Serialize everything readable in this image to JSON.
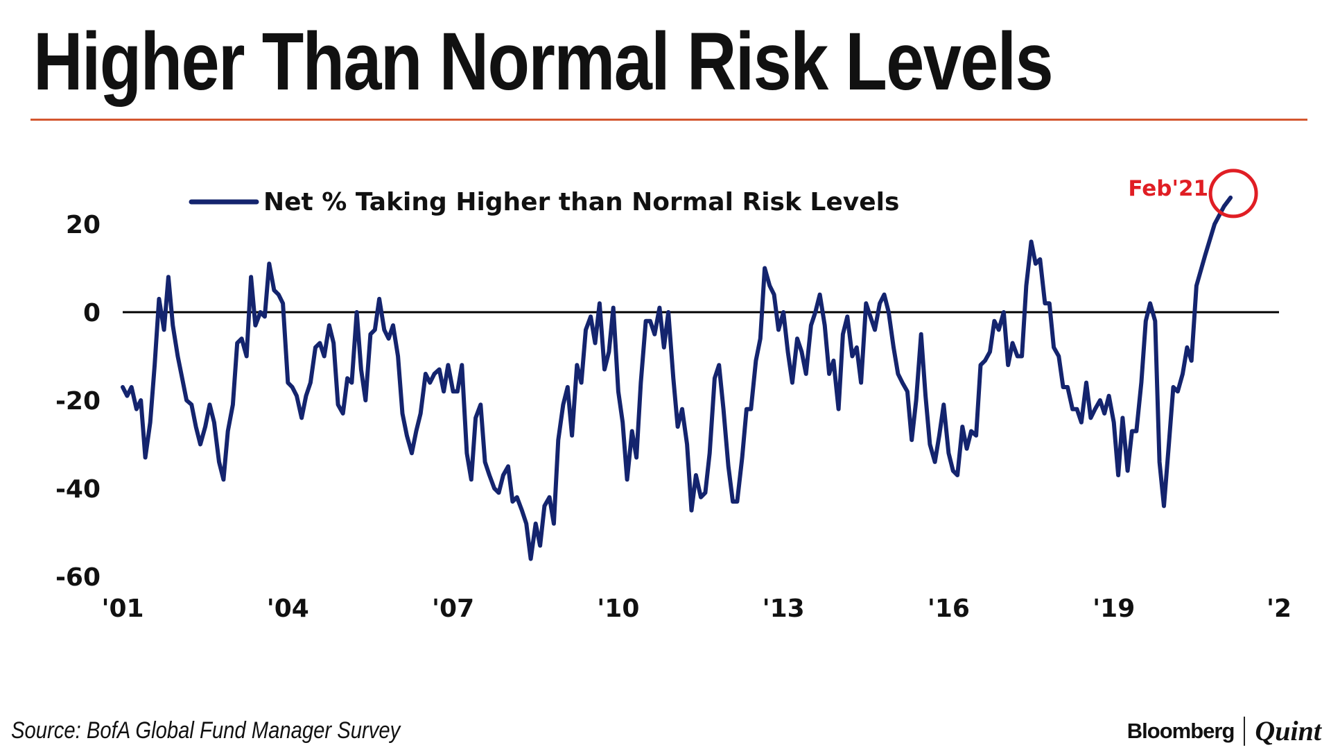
{
  "header": {
    "title": "Higher Than Normal Risk Levels"
  },
  "footer": {
    "source": "Source: BofA Global Fund Manager Survey",
    "brand_primary": "Bloomberg",
    "brand_secondary": "Quint"
  },
  "colors": {
    "line": "#14246e",
    "accent_rule": "#d4572f",
    "highlight": "#e01e24",
    "zero_line": "#000000"
  },
  "chart_data": {
    "type": "line",
    "title": "",
    "xlabel": "",
    "ylabel": "",
    "xlim": [
      2001,
      2022
    ],
    "ylim": [
      -60,
      25
    ],
    "y_ticks": [
      20,
      0,
      -20,
      -40,
      -60
    ],
    "x_ticks": [
      {
        "value": 2001,
        "label": "'01"
      },
      {
        "value": 2004,
        "label": "'04"
      },
      {
        "value": 2007,
        "label": "'07"
      },
      {
        "value": 2010,
        "label": "'10"
      },
      {
        "value": 2013,
        "label": "'13"
      },
      {
        "value": 2016,
        "label": "'16"
      },
      {
        "value": 2019,
        "label": "'19"
      },
      {
        "value": 2022,
        "label": "'2"
      }
    ],
    "legend": {
      "position": "top-left",
      "entries": [
        "Net % Taking Higher than Normal Risk Levels"
      ]
    },
    "annotation": {
      "label": "Feb'21",
      "x": 2021.12,
      "y": 26
    },
    "reference_line": {
      "y": 0
    },
    "series": [
      {
        "name": "Net % Taking Higher than Normal Risk Levels",
        "points": [
          [
            2001.0,
            -17
          ],
          [
            2001.08,
            -19
          ],
          [
            2001.16,
            -17
          ],
          [
            2001.25,
            -22
          ],
          [
            2001.33,
            -20
          ],
          [
            2001.41,
            -33
          ],
          [
            2001.5,
            -25
          ],
          [
            2001.58,
            -12
          ],
          [
            2001.66,
            3
          ],
          [
            2001.75,
            -4
          ],
          [
            2001.83,
            8
          ],
          [
            2001.91,
            -3
          ],
          [
            2002.0,
            -10
          ],
          [
            2002.08,
            -15
          ],
          [
            2002.16,
            -20
          ],
          [
            2002.25,
            -21
          ],
          [
            2002.33,
            -26
          ],
          [
            2002.41,
            -30
          ],
          [
            2002.5,
            -26
          ],
          [
            2002.58,
            -21
          ],
          [
            2002.66,
            -25
          ],
          [
            2002.75,
            -34
          ],
          [
            2002.83,
            -38
          ],
          [
            2002.91,
            -27
          ],
          [
            2003.0,
            -21
          ],
          [
            2003.08,
            -7
          ],
          [
            2003.16,
            -6
          ],
          [
            2003.25,
            -10
          ],
          [
            2003.33,
            8
          ],
          [
            2003.41,
            -3
          ],
          [
            2003.5,
            0
          ],
          [
            2003.58,
            -1
          ],
          [
            2003.66,
            11
          ],
          [
            2003.75,
            5
          ],
          [
            2003.83,
            4
          ],
          [
            2003.91,
            2
          ],
          [
            2004.0,
            -16
          ],
          [
            2004.08,
            -17
          ],
          [
            2004.16,
            -19
          ],
          [
            2004.25,
            -24
          ],
          [
            2004.33,
            -19
          ],
          [
            2004.41,
            -16
          ],
          [
            2004.5,
            -8
          ],
          [
            2004.58,
            -7
          ],
          [
            2004.66,
            -10
          ],
          [
            2004.75,
            -3
          ],
          [
            2004.83,
            -7
          ],
          [
            2004.91,
            -21
          ],
          [
            2005.0,
            -23
          ],
          [
            2005.08,
            -15
          ],
          [
            2005.16,
            -16
          ],
          [
            2005.25,
            0
          ],
          [
            2005.33,
            -13
          ],
          [
            2005.41,
            -20
          ],
          [
            2005.5,
            -5
          ],
          [
            2005.58,
            -4
          ],
          [
            2005.66,
            3
          ],
          [
            2005.75,
            -4
          ],
          [
            2005.83,
            -6
          ],
          [
            2005.91,
            -3
          ],
          [
            2006.0,
            -10
          ],
          [
            2006.08,
            -23
          ],
          [
            2006.16,
            -28
          ],
          [
            2006.25,
            -32
          ],
          [
            2006.33,
            -27
          ],
          [
            2006.41,
            -23
          ],
          [
            2006.5,
            -14
          ],
          [
            2006.58,
            -16
          ],
          [
            2006.66,
            -14
          ],
          [
            2006.75,
            -13
          ],
          [
            2006.83,
            -18
          ],
          [
            2006.91,
            -12
          ],
          [
            2007.0,
            -18
          ],
          [
            2007.08,
            -18
          ],
          [
            2007.16,
            -12
          ],
          [
            2007.25,
            -32
          ],
          [
            2007.33,
            -38
          ],
          [
            2007.41,
            -24
          ],
          [
            2007.5,
            -21
          ],
          [
            2007.58,
            -34
          ],
          [
            2007.66,
            -37
          ],
          [
            2007.75,
            -40
          ],
          [
            2007.83,
            -41
          ],
          [
            2007.91,
            -37
          ],
          [
            2008.0,
            -35
          ],
          [
            2008.08,
            -43
          ],
          [
            2008.16,
            -42
          ],
          [
            2008.25,
            -45
          ],
          [
            2008.33,
            -48
          ],
          [
            2008.41,
            -56
          ],
          [
            2008.5,
            -48
          ],
          [
            2008.58,
            -53
          ],
          [
            2008.66,
            -44
          ],
          [
            2008.75,
            -42
          ],
          [
            2008.83,
            -48
          ],
          [
            2008.91,
            -29
          ],
          [
            2009.0,
            -21
          ],
          [
            2009.08,
            -17
          ],
          [
            2009.16,
            -28
          ],
          [
            2009.25,
            -12
          ],
          [
            2009.33,
            -16
          ],
          [
            2009.41,
            -4
          ],
          [
            2009.5,
            -1
          ],
          [
            2009.58,
            -7
          ],
          [
            2009.66,
            2
          ],
          [
            2009.75,
            -13
          ],
          [
            2009.83,
            -9
          ],
          [
            2009.91,
            1
          ],
          [
            2010.0,
            -18
          ],
          [
            2010.08,
            -25
          ],
          [
            2010.16,
            -38
          ],
          [
            2010.25,
            -27
          ],
          [
            2010.33,
            -33
          ],
          [
            2010.41,
            -16
          ],
          [
            2010.5,
            -2
          ],
          [
            2010.58,
            -2
          ],
          [
            2010.66,
            -5
          ],
          [
            2010.75,
            1
          ],
          [
            2010.83,
            -8
          ],
          [
            2010.91,
            0
          ],
          [
            2011.0,
            -15
          ],
          [
            2011.08,
            -26
          ],
          [
            2011.16,
            -22
          ],
          [
            2011.25,
            -30
          ],
          [
            2011.33,
            -45
          ],
          [
            2011.41,
            -37
          ],
          [
            2011.5,
            -42
          ],
          [
            2011.58,
            -41
          ],
          [
            2011.66,
            -32
          ],
          [
            2011.75,
            -15
          ],
          [
            2011.83,
            -12
          ],
          [
            2011.91,
            -22
          ],
          [
            2012.0,
            -35
          ],
          [
            2012.08,
            -43
          ],
          [
            2012.16,
            -43
          ],
          [
            2012.25,
            -33
          ],
          [
            2012.33,
            -22
          ],
          [
            2012.41,
            -22
          ],
          [
            2012.5,
            -11
          ],
          [
            2012.58,
            -6
          ],
          [
            2012.66,
            10
          ],
          [
            2012.75,
            6
          ],
          [
            2012.83,
            4
          ],
          [
            2012.91,
            -4
          ],
          [
            2013.0,
            0
          ],
          [
            2013.08,
            -9
          ],
          [
            2013.16,
            -16
          ],
          [
            2013.25,
            -6
          ],
          [
            2013.33,
            -9
          ],
          [
            2013.41,
            -14
          ],
          [
            2013.5,
            -3
          ],
          [
            2013.58,
            0
          ],
          [
            2013.66,
            4
          ],
          [
            2013.75,
            -3
          ],
          [
            2013.83,
            -14
          ],
          [
            2013.91,
            -11
          ],
          [
            2014.0,
            -22
          ],
          [
            2014.08,
            -5
          ],
          [
            2014.16,
            -1
          ],
          [
            2014.25,
            -10
          ],
          [
            2014.33,
            -8
          ],
          [
            2014.41,
            -16
          ],
          [
            2014.5,
            2
          ],
          [
            2014.58,
            -1
          ],
          [
            2014.66,
            -4
          ],
          [
            2014.75,
            2
          ],
          [
            2014.83,
            4
          ],
          [
            2014.91,
            0
          ],
          [
            2015.0,
            -8
          ],
          [
            2015.08,
            -14
          ],
          [
            2015.16,
            -16
          ],
          [
            2015.25,
            -18
          ],
          [
            2015.33,
            -29
          ],
          [
            2015.41,
            -20
          ],
          [
            2015.5,
            -5
          ],
          [
            2015.58,
            -19
          ],
          [
            2015.66,
            -30
          ],
          [
            2015.75,
            -34
          ],
          [
            2015.83,
            -28
          ],
          [
            2015.91,
            -21
          ],
          [
            2016.0,
            -32
          ],
          [
            2016.08,
            -36
          ],
          [
            2016.16,
            -37
          ],
          [
            2016.25,
            -26
          ],
          [
            2016.33,
            -31
          ],
          [
            2016.41,
            -27
          ],
          [
            2016.5,
            -28
          ],
          [
            2016.58,
            -12
          ],
          [
            2016.66,
            -11
          ],
          [
            2016.75,
            -9
          ],
          [
            2016.83,
            -2
          ],
          [
            2016.91,
            -4
          ],
          [
            2017.0,
            0
          ],
          [
            2017.08,
            -12
          ],
          [
            2017.16,
            -7
          ],
          [
            2017.25,
            -10
          ],
          [
            2017.33,
            -10
          ],
          [
            2017.41,
            6
          ],
          [
            2017.5,
            16
          ],
          [
            2017.58,
            11
          ],
          [
            2017.66,
            12
          ],
          [
            2017.75,
            2
          ],
          [
            2017.83,
            2
          ],
          [
            2017.91,
            -8
          ],
          [
            2018.0,
            -10
          ],
          [
            2018.08,
            -17
          ],
          [
            2018.16,
            -17
          ],
          [
            2018.25,
            -22
          ],
          [
            2018.33,
            -22
          ],
          [
            2018.41,
            -25
          ],
          [
            2018.5,
            -16
          ],
          [
            2018.58,
            -24
          ],
          [
            2018.66,
            -22
          ],
          [
            2018.75,
            -20
          ],
          [
            2018.83,
            -23
          ],
          [
            2018.91,
            -19
          ],
          [
            2019.0,
            -25
          ],
          [
            2019.08,
            -37
          ],
          [
            2019.16,
            -24
          ],
          [
            2019.25,
            -36
          ],
          [
            2019.33,
            -27
          ],
          [
            2019.41,
            -27
          ],
          [
            2019.5,
            -16
          ],
          [
            2019.58,
            -2
          ],
          [
            2019.66,
            2
          ],
          [
            2019.75,
            -2
          ],
          [
            2019.83,
            -34
          ],
          [
            2019.91,
            -44
          ],
          [
            2020.0,
            -30
          ],
          [
            2020.08,
            -17
          ],
          [
            2020.16,
            -18
          ],
          [
            2020.25,
            -14
          ],
          [
            2020.33,
            -8
          ],
          [
            2020.41,
            -11
          ],
          [
            2020.5,
            6
          ],
          [
            2020.66,
            13
          ],
          [
            2020.83,
            20
          ],
          [
            2021.0,
            24
          ],
          [
            2021.12,
            26
          ]
        ]
      }
    ]
  }
}
